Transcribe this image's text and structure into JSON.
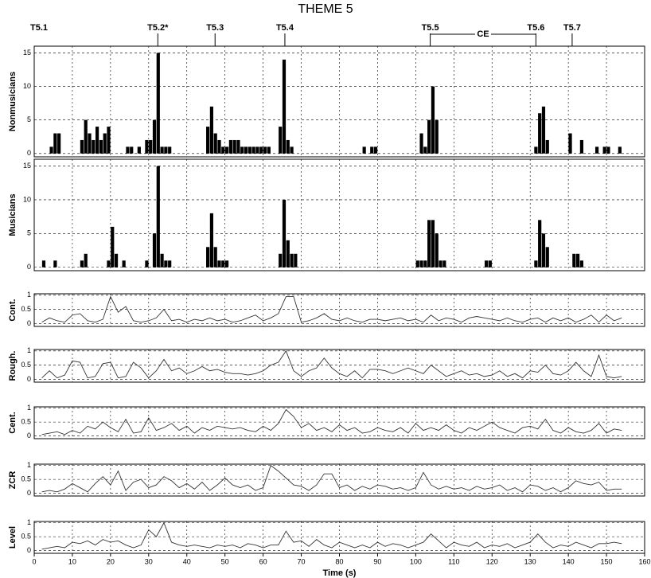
{
  "title": "THEME 5",
  "chart_data": [
    {
      "type": "bar",
      "ylabel": "Nonmusicians",
      "color": "#000000",
      "annotations": [
        {
          "text": "T5.1"
        },
        {
          "text": "T5.2*",
          "x": 32.4
        },
        {
          "text": "T5.3",
          "x": 47.4
        },
        {
          "text": "T5.4",
          "x": 65.7
        },
        {
          "text": "T5.5",
          "x": 103.8
        },
        {
          "text": "CE",
          "x": [
            103.8,
            131.5
          ]
        },
        {
          "text": "T5.6",
          "x": 131.5
        },
        {
          "text": "T5.7",
          "x": 141
        }
      ],
      "x": [
        4,
        5,
        6,
        12,
        13,
        14,
        15,
        16,
        17,
        18,
        19,
        24,
        25,
        27,
        29,
        30,
        31,
        32,
        33,
        34,
        35,
        45,
        46,
        47,
        48,
        49,
        50,
        51,
        52,
        53,
        54,
        55,
        56,
        57,
        58,
        59,
        60,
        61,
        64,
        65,
        66,
        67,
        86,
        88,
        89,
        101,
        102,
        103,
        104,
        105,
        131,
        132,
        133,
        134,
        140,
        143,
        147,
        149,
        150,
        153
      ],
      "values": [
        1,
        3,
        3,
        2,
        5,
        3,
        2,
        4,
        2,
        3,
        4,
        1,
        1,
        1,
        2,
        2,
        5,
        15,
        1,
        1,
        1,
        4,
        7,
        3,
        2,
        1,
        1,
        2,
        2,
        2,
        1,
        1,
        1,
        1,
        1,
        1,
        1,
        1,
        4,
        14,
        2,
        1,
        1,
        1,
        1,
        3,
        1,
        5,
        10,
        5,
        1,
        6,
        7,
        2,
        3,
        2,
        1,
        1,
        1,
        1
      ],
      "xlim": [
        0,
        160
      ],
      "xticks": [
        0,
        10,
        20,
        30,
        40,
        50,
        60,
        70,
        80,
        90,
        100,
        110,
        120,
        130,
        140,
        150,
        160
      ],
      "ylim": [
        -0.5,
        16
      ],
      "yticks": [
        0,
        5,
        10,
        15
      ],
      "grid": true
    },
    {
      "type": "bar",
      "ylabel": "Musicians",
      "color": "#000000",
      "x": [
        2,
        5,
        12,
        13,
        19,
        20,
        21,
        23,
        29,
        31,
        32,
        33,
        34,
        35,
        45,
        46,
        47,
        48,
        49,
        50,
        64,
        65,
        66,
        67,
        68,
        100,
        101,
        102,
        103,
        104,
        105,
        106,
        107,
        118,
        119,
        131,
        132,
        133,
        134,
        141,
        142,
        143
      ],
      "values": [
        1,
        1,
        1,
        2,
        1,
        6,
        2,
        1,
        1,
        5,
        15,
        2,
        1,
        1,
        3,
        8,
        3,
        1,
        1,
        1,
        2,
        10,
        4,
        2,
        2,
        1,
        1,
        1,
        7,
        7,
        5,
        1,
        1,
        1,
        1,
        1,
        7,
        5,
        3,
        2,
        2,
        1
      ],
      "xlim": [
        0,
        160
      ],
      "xticks": [
        0,
        10,
        20,
        30,
        40,
        50,
        60,
        70,
        80,
        90,
        100,
        110,
        120,
        130,
        140,
        150,
        160
      ],
      "ylim": [
        -0.5,
        16
      ],
      "yticks": [
        0,
        5,
        10,
        15
      ],
      "grid": true
    },
    {
      "type": "line",
      "ylabel": "Cont.",
      "color": "#333333",
      "x": [
        2,
        4,
        6,
        8,
        10,
        12,
        14,
        16,
        18,
        20,
        22,
        24,
        26,
        28,
        30,
        32,
        34,
        36,
        38,
        40,
        42,
        44,
        46,
        48,
        50,
        52,
        54,
        56,
        58,
        60,
        62,
        64,
        66,
        68,
        70,
        72,
        74,
        76,
        78,
        80,
        82,
        84,
        86,
        88,
        90,
        92,
        94,
        96,
        98,
        100,
        102,
        104,
        106,
        108,
        110,
        112,
        114,
        116,
        118,
        120,
        122,
        124,
        126,
        128,
        130,
        132,
        134,
        136,
        138,
        140,
        142,
        144,
        146,
        148,
        150,
        152,
        154
      ],
      "values": [
        0.05,
        0.2,
        0.1,
        0.05,
        0.3,
        0.35,
        0.1,
        0.05,
        0.15,
        0.95,
        0.4,
        0.6,
        0.1,
        0.05,
        0.1,
        0.2,
        0.5,
        0.1,
        0.15,
        0.05,
        0.15,
        0.1,
        0.2,
        0.1,
        0.15,
        0.05,
        0.1,
        0.2,
        0.3,
        0.1,
        0.2,
        0.35,
        0.95,
        0.95,
        0.05,
        0.1,
        0.2,
        0.35,
        0.15,
        0.1,
        0.2,
        0.1,
        0.05,
        0.15,
        0.15,
        0.1,
        0.15,
        0.2,
        0.1,
        0.15,
        0.05,
        0.3,
        0.1,
        0.2,
        0.15,
        0.05,
        0.2,
        0.25,
        0.2,
        0.15,
        0.1,
        0.2,
        0.1,
        0.05,
        0.15,
        0.2,
        0.05,
        0.2,
        0.1,
        0.2,
        0.05,
        0.15,
        0.3,
        0.05,
        0.3,
        0.1,
        0.2
      ],
      "xlim": [
        0,
        160
      ],
      "xticks": [
        0,
        10,
        20,
        30,
        40,
        50,
        60,
        70,
        80,
        90,
        100,
        110,
        120,
        130,
        140,
        150,
        160
      ],
      "ylim": [
        -0.1,
        1.05
      ],
      "yticks": [
        0,
        0.5,
        1
      ],
      "grid": true
    },
    {
      "type": "line",
      "ylabel": "Rough.",
      "color": "#333333",
      "x": [
        2,
        4,
        6,
        8,
        10,
        12,
        14,
        16,
        18,
        20,
        22,
        24,
        26,
        28,
        30,
        32,
        34,
        36,
        38,
        40,
        42,
        44,
        46,
        48,
        50,
        52,
        54,
        56,
        58,
        60,
        62,
        64,
        66,
        68,
        70,
        72,
        74,
        76,
        78,
        80,
        82,
        84,
        86,
        88,
        90,
        92,
        94,
        96,
        98,
        100,
        102,
        104,
        106,
        108,
        110,
        112,
        114,
        116,
        118,
        120,
        122,
        124,
        126,
        128,
        130,
        132,
        134,
        136,
        138,
        140,
        142,
        144,
        146,
        148,
        150,
        152,
        154
      ],
      "values": [
        0.05,
        0.3,
        0.05,
        0.15,
        0.65,
        0.6,
        0.05,
        0.1,
        0.55,
        0.6,
        0.05,
        0.1,
        0.6,
        0.4,
        0.05,
        0.3,
        0.7,
        0.3,
        0.4,
        0.2,
        0.3,
        0.45,
        0.3,
        0.35,
        0.25,
        0.2,
        0.2,
        0.15,
        0.2,
        0.3,
        0.5,
        0.6,
        1,
        0.3,
        0.1,
        0.3,
        0.4,
        0.75,
        0.4,
        0.2,
        0.1,
        0.3,
        0.05,
        0.35,
        0.35,
        0.3,
        0.2,
        0.3,
        0.4,
        0.3,
        0.2,
        0.5,
        0.3,
        0.1,
        0.2,
        0.3,
        0.15,
        0.2,
        0.1,
        0.15,
        0.3,
        0.1,
        0.2,
        0.05,
        0.3,
        0.25,
        0.5,
        0.2,
        0.15,
        0.3,
        0.6,
        0.3,
        0.1,
        0.85,
        0.1,
        0.05,
        0.1
      ],
      "xlim": [
        0,
        160
      ],
      "xticks": [
        0,
        10,
        20,
        30,
        40,
        50,
        60,
        70,
        80,
        90,
        100,
        110,
        120,
        130,
        140,
        150,
        160
      ],
      "ylim": [
        -0.1,
        1.05
      ],
      "yticks": [
        0,
        0.5,
        1
      ],
      "grid": true
    },
    {
      "type": "line",
      "ylabel": "Cent.",
      "color": "#333333",
      "x": [
        2,
        4,
        6,
        8,
        10,
        12,
        14,
        16,
        18,
        20,
        22,
        24,
        26,
        28,
        30,
        32,
        34,
        36,
        38,
        40,
        42,
        44,
        46,
        48,
        50,
        52,
        54,
        56,
        58,
        60,
        62,
        64,
        66,
        68,
        70,
        72,
        74,
        76,
        78,
        80,
        82,
        84,
        86,
        88,
        90,
        92,
        94,
        96,
        98,
        100,
        102,
        104,
        106,
        108,
        110,
        112,
        114,
        116,
        118,
        120,
        122,
        124,
        126,
        128,
        130,
        132,
        134,
        136,
        138,
        140,
        142,
        144,
        146,
        148,
        150,
        152,
        154
      ],
      "values": [
        0.05,
        0.1,
        0.15,
        0.05,
        0.2,
        0.1,
        0.35,
        0.25,
        0.5,
        0.3,
        0.15,
        0.6,
        0.1,
        0.15,
        0.65,
        0.2,
        0.3,
        0.45,
        0.2,
        0.35,
        0.1,
        0.3,
        0.2,
        0.35,
        0.3,
        0.25,
        0.3,
        0.2,
        0.15,
        0.35,
        0.2,
        0.45,
        0.95,
        0.7,
        0.3,
        0.45,
        0.2,
        0.3,
        0.15,
        0.4,
        0.2,
        0.3,
        0.1,
        0.15,
        0.3,
        0.2,
        0.15,
        0.3,
        0.1,
        0.45,
        0.2,
        0.3,
        0.2,
        0.4,
        0.2,
        0.1,
        0.3,
        0.2,
        0.35,
        0.5,
        0.3,
        0.2,
        0.1,
        0.3,
        0.35,
        0.25,
        0.6,
        0.2,
        0.1,
        0.3,
        0.15,
        0.1,
        0.2,
        0.45,
        0.1,
        0.25,
        0.2
      ],
      "xlim": [
        0,
        160
      ],
      "xticks": [
        0,
        10,
        20,
        30,
        40,
        50,
        60,
        70,
        80,
        90,
        100,
        110,
        120,
        130,
        140,
        150,
        160
      ],
      "ylim": [
        -0.1,
        1.05
      ],
      "yticks": [
        0,
        0.5,
        1
      ],
      "grid": true
    },
    {
      "type": "line",
      "ylabel": "ZCR",
      "color": "#333333",
      "x": [
        2,
        4,
        6,
        8,
        10,
        12,
        14,
        16,
        18,
        20,
        22,
        24,
        26,
        28,
        30,
        32,
        34,
        36,
        38,
        40,
        42,
        44,
        46,
        48,
        50,
        52,
        54,
        56,
        58,
        60,
        62,
        64,
        66,
        68,
        70,
        72,
        74,
        76,
        78,
        80,
        82,
        84,
        86,
        88,
        90,
        92,
        94,
        96,
        98,
        100,
        102,
        104,
        106,
        108,
        110,
        112,
        114,
        116,
        118,
        120,
        122,
        124,
        126,
        128,
        130,
        132,
        134,
        136,
        138,
        140,
        142,
        144,
        146,
        148,
        150,
        152,
        154
      ],
      "values": [
        0.05,
        0.1,
        0.05,
        0.15,
        0.35,
        0.2,
        0.05,
        0.35,
        0.6,
        0.3,
        0.8,
        0.1,
        0.4,
        0.5,
        0.2,
        0.3,
        0.6,
        0.45,
        0.2,
        0.35,
        0.15,
        0.4,
        0.1,
        0.3,
        0.55,
        0.3,
        0.2,
        0.3,
        0.1,
        0.2,
        1,
        0.8,
        0.55,
        0.3,
        0.25,
        0.1,
        0.3,
        0.7,
        0.7,
        0.2,
        0.3,
        0.1,
        0.25,
        0.15,
        0.3,
        0.25,
        0.15,
        0.2,
        0.1,
        0.2,
        0.75,
        0.3,
        0.15,
        0.25,
        0.15,
        0.2,
        0.1,
        0.25,
        0.15,
        0.2,
        0.3,
        0.1,
        0.2,
        0.05,
        0.3,
        0.25,
        0.1,
        0.2,
        0.05,
        0.2,
        0.45,
        0.35,
        0.3,
        0.4,
        0.1,
        0.15,
        0.15
      ],
      "xlim": [
        0,
        160
      ],
      "xticks": [
        0,
        10,
        20,
        30,
        40,
        50,
        60,
        70,
        80,
        90,
        100,
        110,
        120,
        130,
        140,
        150,
        160
      ],
      "ylim": [
        -0.1,
        1.05
      ],
      "yticks": [
        0,
        0.5,
        1
      ],
      "grid": true
    },
    {
      "type": "line",
      "ylabel": "Level",
      "xlabel": "Time (s)",
      "color": "#333333",
      "x": [
        2,
        4,
        6,
        8,
        10,
        12,
        14,
        16,
        18,
        20,
        22,
        24,
        26,
        28,
        30,
        32,
        34,
        36,
        38,
        40,
        42,
        44,
        46,
        48,
        50,
        52,
        54,
        56,
        58,
        60,
        62,
        64,
        66,
        68,
        70,
        72,
        74,
        76,
        78,
        80,
        82,
        84,
        86,
        88,
        90,
        92,
        94,
        96,
        98,
        100,
        102,
        104,
        106,
        108,
        110,
        112,
        114,
        116,
        118,
        120,
        122,
        124,
        126,
        128,
        130,
        132,
        134,
        136,
        138,
        140,
        142,
        144,
        146,
        148,
        150,
        152,
        154
      ],
      "values": [
        0.05,
        0.1,
        0.15,
        0.1,
        0.3,
        0.25,
        0.35,
        0.2,
        0.4,
        0.3,
        0.35,
        0.2,
        0.1,
        0.2,
        0.75,
        0.5,
        1,
        0.3,
        0.2,
        0.15,
        0.2,
        0.15,
        0.1,
        0.2,
        0.15,
        0.2,
        0.1,
        0.25,
        0.2,
        0.1,
        0.2,
        0.2,
        0.7,
        0.3,
        0.35,
        0.15,
        0.4,
        0.2,
        0.1,
        0.3,
        0.2,
        0.1,
        0.2,
        0.1,
        0.3,
        0.15,
        0.25,
        0.2,
        0.1,
        0.2,
        0.3,
        0.6,
        0.35,
        0.1,
        0.3,
        0.2,
        0.15,
        0.3,
        0.1,
        0.2,
        0.15,
        0.25,
        0.1,
        0.2,
        0.3,
        0.6,
        0.3,
        0.1,
        0.2,
        0.15,
        0.3,
        0.2,
        0.1,
        0.25,
        0.25,
        0.3,
        0.25
      ],
      "xlim": [
        0,
        160
      ],
      "xticks": [
        0,
        10,
        20,
        30,
        40,
        50,
        60,
        70,
        80,
        90,
        100,
        110,
        120,
        130,
        140,
        150,
        160
      ],
      "ylim": [
        -0.1,
        1.05
      ],
      "yticks": [
        0,
        0.5,
        1
      ],
      "grid": true
    }
  ]
}
